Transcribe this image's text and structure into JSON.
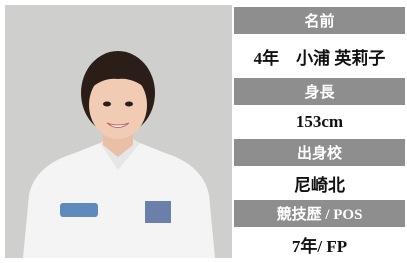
{
  "profile": [
    {
      "label": "名前",
      "value": "4年　小浦 英莉子"
    },
    {
      "label": "身長",
      "value": "153cm"
    },
    {
      "label": "出身校",
      "value": "尼崎北"
    },
    {
      "label": "競技歴 / POS",
      "value": "7年/ FP"
    }
  ]
}
